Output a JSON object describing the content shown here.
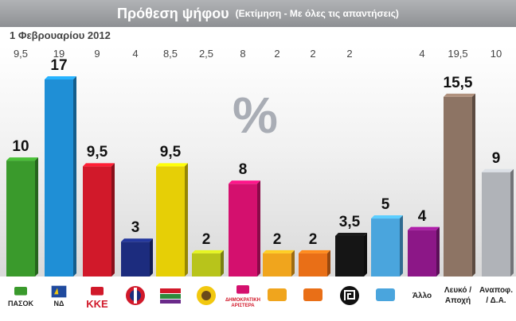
{
  "header": {
    "title": "Πρόθεση ψήφου",
    "subtitle": "(Εκτίμηση - Με όλες τις απαντήσεις)",
    "date": "1 Φεβρουαρίου 2012",
    "percent_sign": "%"
  },
  "chart_data": {
    "type": "bar",
    "ylim": [
      0,
      17
    ],
    "grid": false,
    "categories": [
      "ΠΑΣΟΚ",
      "ΝΔ",
      "ΚΚΕ",
      "ΛΑΟΣ",
      "ΣΥΡΙΖΑ",
      "Οικολόγοι",
      "ΔΗΜΑΡ",
      "Δημοκρατική Συμμαχία",
      "Δράση",
      "Χρυσή Αυγή",
      "Ξεκίνημα",
      "Άλλο",
      "Λευκό / Αποχή",
      "Αναποφ. / Δ.Α."
    ],
    "values": [
      10,
      17,
      9.5,
      3,
      9.5,
      2,
      8,
      2,
      2,
      3.5,
      5,
      4,
      15.5,
      9
    ],
    "value_labels": [
      "10",
      "17",
      "9,5",
      "3",
      "9,5",
      "2",
      "8",
      "2",
      "2",
      "3,5",
      "5",
      "4",
      "15,5",
      "9"
    ],
    "previous_labels": [
      "9,5",
      "19",
      "9",
      "4",
      "8,5",
      "2,5",
      "8",
      "2",
      "2",
      "2",
      "",
      "4",
      "19,5",
      "10"
    ],
    "colors": [
      "#3a9a2c",
      "#1f8fd6",
      "#d1192a",
      "#1c2c7e",
      "#e6cf06",
      "#b8c41b",
      "#d4106e",
      "#f0a51d",
      "#e96f17",
      "#151515",
      "#4aa5dd",
      "#8c1787",
      "#8d7464",
      "#b0b3b8"
    ]
  },
  "logos": [
    {
      "icon": "pasok-sun-icon",
      "text": "ΠΑΣΟΚ"
    },
    {
      "icon": "nd-torch-icon",
      "text": "ΝΔ"
    },
    {
      "icon": "kke-icon",
      "text": "ΚΚΕ"
    },
    {
      "icon": "laos-icon",
      "text": ""
    },
    {
      "icon": "syriza-flags-icon",
      "text": ""
    },
    {
      "icon": "ecologists-sunflower-icon",
      "text": ""
    },
    {
      "icon": "dimar-icon",
      "text": "ΔΗΜΟΚΡΑΤΙΚΗ ΑΡΙΣΤΕΡΑ"
    },
    {
      "icon": "democratic-alliance-icon",
      "text": ""
    },
    {
      "icon": "drasi-icon",
      "text": ""
    },
    {
      "icon": "golden-dawn-meander-icon",
      "text": ""
    },
    {
      "icon": "xekinima-icon",
      "text": ""
    },
    {
      "icon": "",
      "text": "Άλλο"
    },
    {
      "icon": "",
      "text": "Λευκό / Αποχή"
    },
    {
      "icon": "",
      "text": "Αναποφ. / Δ.Α."
    }
  ]
}
